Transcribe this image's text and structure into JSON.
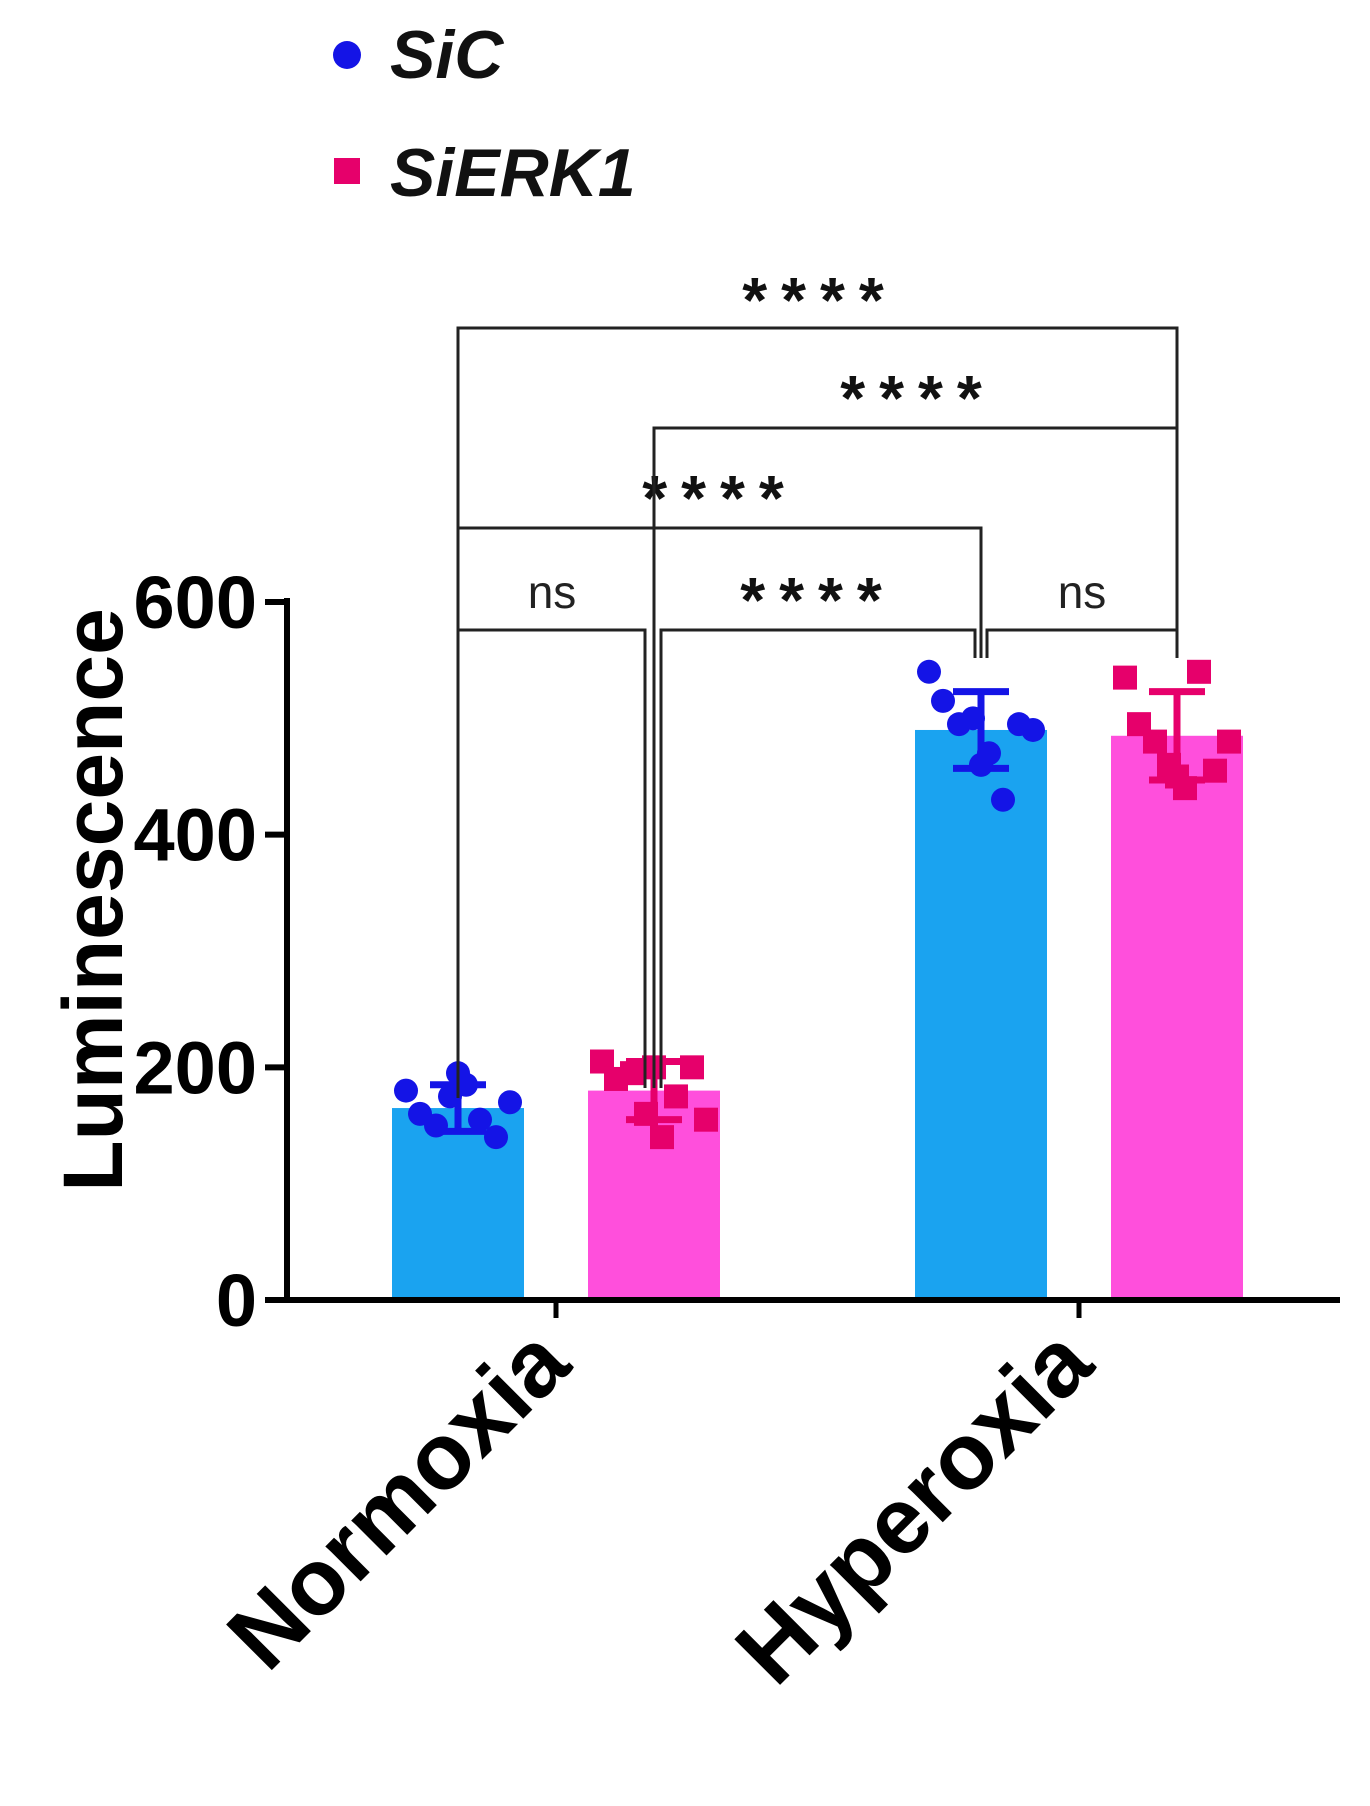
{
  "chart_data": {
    "type": "bar",
    "title": "",
    "xlabel": "",
    "ylabel": "Luminescence",
    "ylim": [
      0,
      600
    ],
    "yticks": [
      "0",
      "200",
      "400",
      "600"
    ],
    "categories": [
      "Normoxia",
      "Hyperoxia"
    ],
    "series": [
      {
        "name": "SiC",
        "color": "#1aa3f0",
        "marker_color": "#1414e6",
        "marker": "circle",
        "values": [
          165,
          490
        ],
        "errors": [
          20,
          33
        ],
        "points": [
          [
            180,
            160,
            150,
            175,
            185,
            155,
            140,
            170,
            195
          ],
          [
            540,
            515,
            495,
            500,
            470,
            430,
            495,
            490,
            460
          ]
        ]
      },
      {
        "name": "SiERK1",
        "color": "#ff4fdc",
        "marker_color": "#e6006b",
        "marker": "square",
        "values": [
          180,
          485
        ],
        "errors": [
          25,
          38
        ],
        "points": [
          [
            205,
            190,
            195,
            160,
            140,
            175,
            200,
            155,
            200
          ],
          [
            535,
            495,
            480,
            460,
            440,
            540,
            455,
            480,
            450
          ]
        ]
      }
    ],
    "legend": {
      "position": "top-left",
      "entries": [
        "SiC",
        "SiERK1"
      ]
    },
    "significance": [
      {
        "from": "Normoxia SiC",
        "to": "Normoxia SiERK1",
        "label": "ns"
      },
      {
        "from": "Normoxia SiERK1",
        "to": "Hyperoxia SiC",
        "label": "****"
      },
      {
        "from": "Hyperoxia SiC",
        "to": "Hyperoxia SiERK1",
        "label": "ns"
      },
      {
        "from": "Normoxia SiC",
        "to": "Hyperoxia SiC",
        "label": "****"
      },
      {
        "from": "Normoxia SiERK1",
        "to": "Hyperoxia SiERK1",
        "label": "****"
      },
      {
        "from": "Normoxia SiC",
        "to": "Hyperoxia SiERK1",
        "label": "****"
      }
    ]
  }
}
